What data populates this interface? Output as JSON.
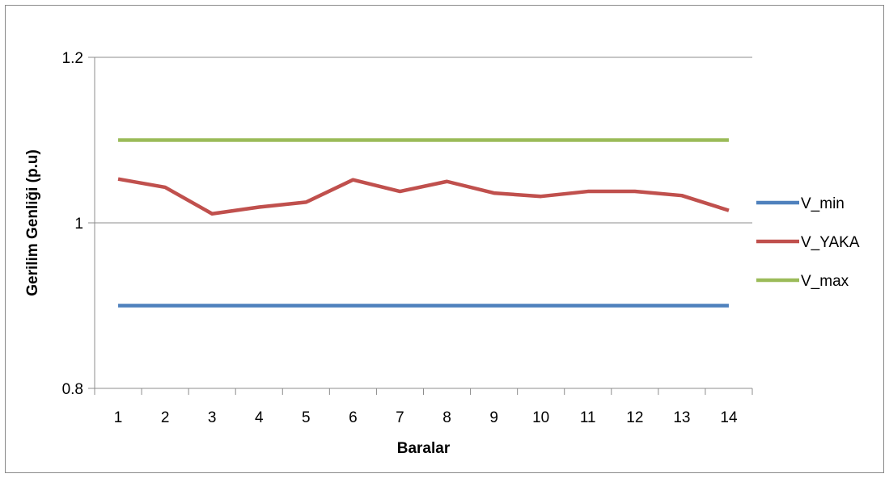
{
  "chart_data": {
    "type": "line",
    "title": "",
    "xlabel": "Baralar",
    "ylabel": "Gerilim Genliği (p.u)",
    "categories": [
      "1",
      "2",
      "3",
      "4",
      "5",
      "6",
      "7",
      "8",
      "9",
      "10",
      "11",
      "12",
      "13",
      "14"
    ],
    "ylim": [
      0.8,
      1.2
    ],
    "yticks": [
      {
        "value": 0.8,
        "label": "0.8"
      },
      {
        "value": 1.0,
        "label": "1"
      },
      {
        "value": 1.2,
        "label": "1.2"
      }
    ],
    "grid": true,
    "legend_position": "right",
    "series": [
      {
        "name": "V_min",
        "color": "#4f81bd",
        "values": [
          0.9,
          0.9,
          0.9,
          0.9,
          0.9,
          0.9,
          0.9,
          0.9,
          0.9,
          0.9,
          0.9,
          0.9,
          0.9,
          0.9
        ]
      },
      {
        "name": "V_YAKA",
        "color": "#c0504d",
        "values": [
          1.053,
          1.043,
          1.011,
          1.019,
          1.025,
          1.052,
          1.038,
          1.05,
          1.036,
          1.032,
          1.038,
          1.038,
          1.033,
          1.015
        ]
      },
      {
        "name": "V_max",
        "color": "#9bbb59",
        "values": [
          1.1,
          1.1,
          1.1,
          1.1,
          1.1,
          1.1,
          1.1,
          1.1,
          1.1,
          1.1,
          1.1,
          1.1,
          1.1,
          1.1
        ]
      }
    ]
  }
}
